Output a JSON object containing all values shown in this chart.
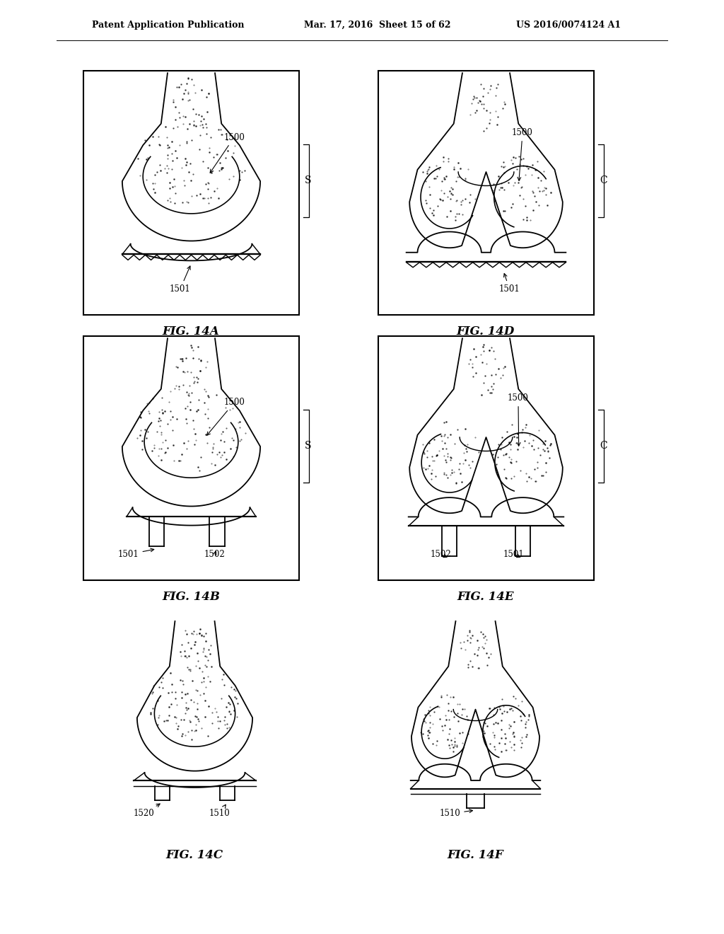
{
  "bg_color": "#ffffff",
  "header_left": "Patent Application Publication",
  "header_mid": "Mar. 17, 2016  Sheet 15 of 62",
  "header_right": "US 2016/0074124 A1",
  "fig_labels": [
    "FIG. 14A",
    "FIG. 14D",
    "FIG. 14B",
    "FIG. 14E",
    "FIG. 14C",
    "FIG. 14F"
  ],
  "side_labels": [
    "S",
    "C",
    "S",
    "C",
    "",
    ""
  ],
  "has_box": [
    true,
    true,
    true,
    true,
    false,
    false
  ]
}
